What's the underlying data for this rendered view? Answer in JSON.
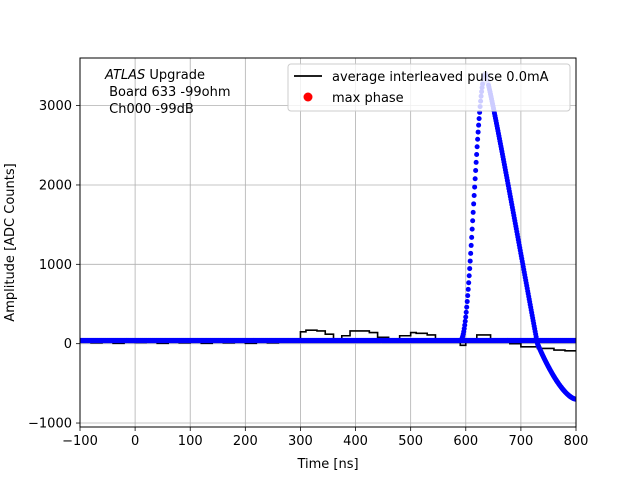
{
  "chart_data": {
    "type": "scatter",
    "title": "",
    "xlabel": "Time [ns]",
    "ylabel": "Amplitude [ADC Counts]",
    "xlim": [
      -100,
      800
    ],
    "ylim": [
      -1050,
      3600
    ],
    "x_ticks": [
      -100,
      0,
      100,
      200,
      300,
      400,
      500,
      600,
      700,
      800
    ],
    "y_ticks": [
      -1000,
      0,
      1000,
      2000,
      3000
    ],
    "grid": true,
    "legend_placement": "top-right",
    "annotation": {
      "line1_italic": "ATLAS",
      "line1_rest": " Upgrade",
      "line2": " Board 633 -99ohm",
      "line3": " Ch000 -99dB"
    },
    "series": [
      {
        "name": "average interleaved pulse 0.0mA",
        "kind": "step-line",
        "color": "#000000",
        "points": [
          [
            -100,
            30
          ],
          [
            -80,
            10
          ],
          [
            -60,
            40
          ],
          [
            -40,
            5
          ],
          [
            -20,
            35
          ],
          [
            0,
            15
          ],
          [
            20,
            40
          ],
          [
            40,
            5
          ],
          [
            60,
            35
          ],
          [
            80,
            10
          ],
          [
            100,
            40
          ],
          [
            120,
            5
          ],
          [
            140,
            35
          ],
          [
            160,
            10
          ],
          [
            180,
            40
          ],
          [
            200,
            5
          ],
          [
            220,
            35
          ],
          [
            240,
            10
          ],
          [
            260,
            30
          ],
          [
            280,
            20
          ],
          [
            290,
            60
          ],
          [
            300,
            150
          ],
          [
            310,
            170
          ],
          [
            330,
            160
          ],
          [
            345,
            120
          ],
          [
            360,
            60
          ],
          [
            375,
            100
          ],
          [
            390,
            160
          ],
          [
            405,
            160
          ],
          [
            425,
            140
          ],
          [
            440,
            80
          ],
          [
            460,
            40
          ],
          [
            480,
            100
          ],
          [
            500,
            140
          ],
          [
            510,
            130
          ],
          [
            530,
            110
          ],
          [
            545,
            60
          ],
          [
            560,
            40
          ],
          [
            575,
            20
          ],
          [
            590,
            -20
          ],
          [
            600,
            60
          ],
          [
            620,
            110
          ],
          [
            645,
            30
          ],
          [
            660,
            20
          ],
          [
            680,
            0
          ],
          [
            700,
            -40
          ],
          [
            730,
            -60
          ],
          [
            760,
            -80
          ],
          [
            780,
            -90
          ],
          [
            800,
            -90
          ]
        ]
      },
      {
        "name": "max phase",
        "kind": "markers",
        "color": "#0000ff",
        "legend_color": "#ff0000",
        "baseline": 40,
        "pulse_start": 590,
        "pulse_peak_x": 636,
        "pulse_peak_y": 3400,
        "undershoot_end_y": -700
      }
    ]
  }
}
